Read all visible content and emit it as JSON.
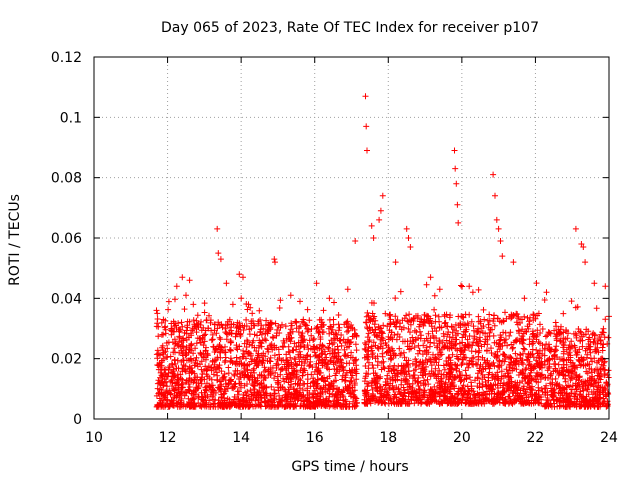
{
  "chart_data": {
    "type": "scatter",
    "title": "Day 065 of 2023, Rate Of TEC Index for receiver p107",
    "xlabel": "GPS time / hours",
    "ylabel": "ROTI / TECUs",
    "xlim": [
      10,
      24
    ],
    "ylim": [
      0,
      0.12
    ],
    "xticks": [
      10,
      12,
      14,
      16,
      18,
      20,
      22,
      24
    ],
    "yticks": [
      0,
      0.02,
      0.04,
      0.06,
      0.08,
      0.1,
      0.12
    ],
    "xtick_labels": [
      "10",
      "12",
      "14",
      "16",
      "18",
      "20",
      "22",
      "24"
    ],
    "ytick_labels": [
      "0",
      "0.02",
      "0.04",
      "0.06",
      "0.08",
      "0.1",
      "0.12"
    ],
    "grid": true,
    "marker": "+",
    "color": "#ff0000",
    "series": [
      {
        "name": "ROTI",
        "x": [
          11.7,
          11.72,
          11.9,
          12.1,
          12.25,
          12.4,
          12.5,
          12.6,
          12.7,
          13.35,
          13.38,
          13.45,
          13.6,
          13.95,
          14.05,
          14.2,
          14.3,
          14.9,
          14.92,
          15.35,
          15.6,
          16.05,
          16.4,
          16.9,
          17.1,
          17.38,
          17.4,
          17.42,
          17.55,
          17.6,
          17.75,
          17.8,
          17.85,
          18.2,
          18.5,
          18.55,
          18.6,
          19.15,
          19.4,
          19.8,
          19.82,
          19.85,
          19.88,
          19.9,
          20.2,
          20.3,
          20.85,
          20.9,
          20.95,
          21.0,
          21.05,
          21.1,
          21.4,
          21.7,
          22.3,
          22.55,
          23.1,
          23.25,
          23.3,
          23.35,
          23.6,
          23.9,
          24.0
        ],
        "y": [
          0.036,
          0.035,
          0.02,
          0.03,
          0.044,
          0.047,
          0.041,
          0.046,
          0.038,
          0.063,
          0.055,
          0.053,
          0.045,
          0.048,
          0.047,
          0.038,
          0.035,
          0.053,
          0.052,
          0.041,
          0.039,
          0.045,
          0.04,
          0.043,
          0.059,
          0.107,
          0.097,
          0.089,
          0.064,
          0.06,
          0.066,
          0.069,
          0.074,
          0.052,
          0.063,
          0.06,
          0.057,
          0.047,
          0.043,
          0.089,
          0.083,
          0.078,
          0.071,
          0.065,
          0.044,
          0.042,
          0.081,
          0.074,
          0.066,
          0.063,
          0.059,
          0.054,
          0.052,
          0.04,
          0.042,
          0.032,
          0.063,
          0.058,
          0.057,
          0.052,
          0.045,
          0.044,
          0.034
        ]
      }
    ],
    "density_bands": [
      {
        "x_start": 11.7,
        "x_end": 17.15,
        "y_low": 0.004,
        "y_high": 0.033
      },
      {
        "x_start": 17.35,
        "x_end": 22.2,
        "y_low": 0.005,
        "y_high": 0.035
      },
      {
        "x_start": 22.25,
        "x_end": 24.0,
        "y_low": 0.004,
        "y_high": 0.03
      }
    ]
  }
}
